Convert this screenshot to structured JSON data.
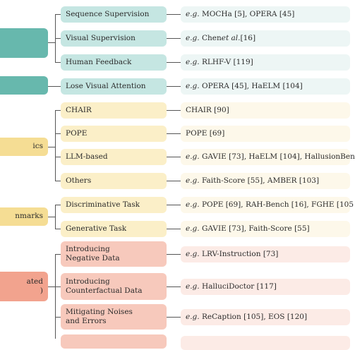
{
  "groups": {
    "g1": {
      "label": "",
      "label2": ""
    },
    "g2": {
      "label": ""
    },
    "g3": {
      "label": "ics"
    },
    "g4": {
      "label": "nmarks"
    },
    "g5": {
      "label": "ated",
      "label2": ")"
    }
  },
  "rows": [
    {
      "label": "Sequence Supervision",
      "eg": "e.g.",
      "example": "MOCHa [5], OPERA [45]"
    },
    {
      "label": "Visual Supervision",
      "eg": "e.g.",
      "example_pre": "Chen ",
      "example_em": "et al.",
      "example_post": " [16]"
    },
    {
      "label": "Human Feedback",
      "eg": "e.g.",
      "example": "RLHF-V [119]"
    },
    {
      "label": "Lose Visual Attention",
      "eg": "e.g.",
      "example": "OPERA [45], HaELM [104]"
    },
    {
      "label": "CHAIR",
      "eg": "",
      "example": "CHAIR [90]"
    },
    {
      "label": "POPE",
      "eg": "",
      "example": "POPE [69]"
    },
    {
      "label": "LLM-based",
      "eg": "e.g.",
      "example": "GAVIE [73], HaELM [104], HallusionBen"
    },
    {
      "label": "Others",
      "eg": "e.g.",
      "example": "Faith-Score [55], AMBER [103]"
    },
    {
      "label": "Discriminative Task",
      "eg": "e.g.",
      "example": "POPE [69], RAH-Bench [16], FGHE [105"
    },
    {
      "label": "Generative Task",
      "eg": "e.g.",
      "example": "GAVIE [73], Faith-Score [55]"
    },
    {
      "label": "Introducing Negative Data",
      "eg": "e.g.",
      "example": "LRV-Instruction [73]"
    },
    {
      "label": "Introducing Counterfactual Data",
      "eg": "e.g.",
      "example": "HalluciDoctor [117]"
    },
    {
      "label": "Mitigating Noises and Errors",
      "eg": "e.g.",
      "example": "ReCaption [105], EOS [120]"
    }
  ]
}
